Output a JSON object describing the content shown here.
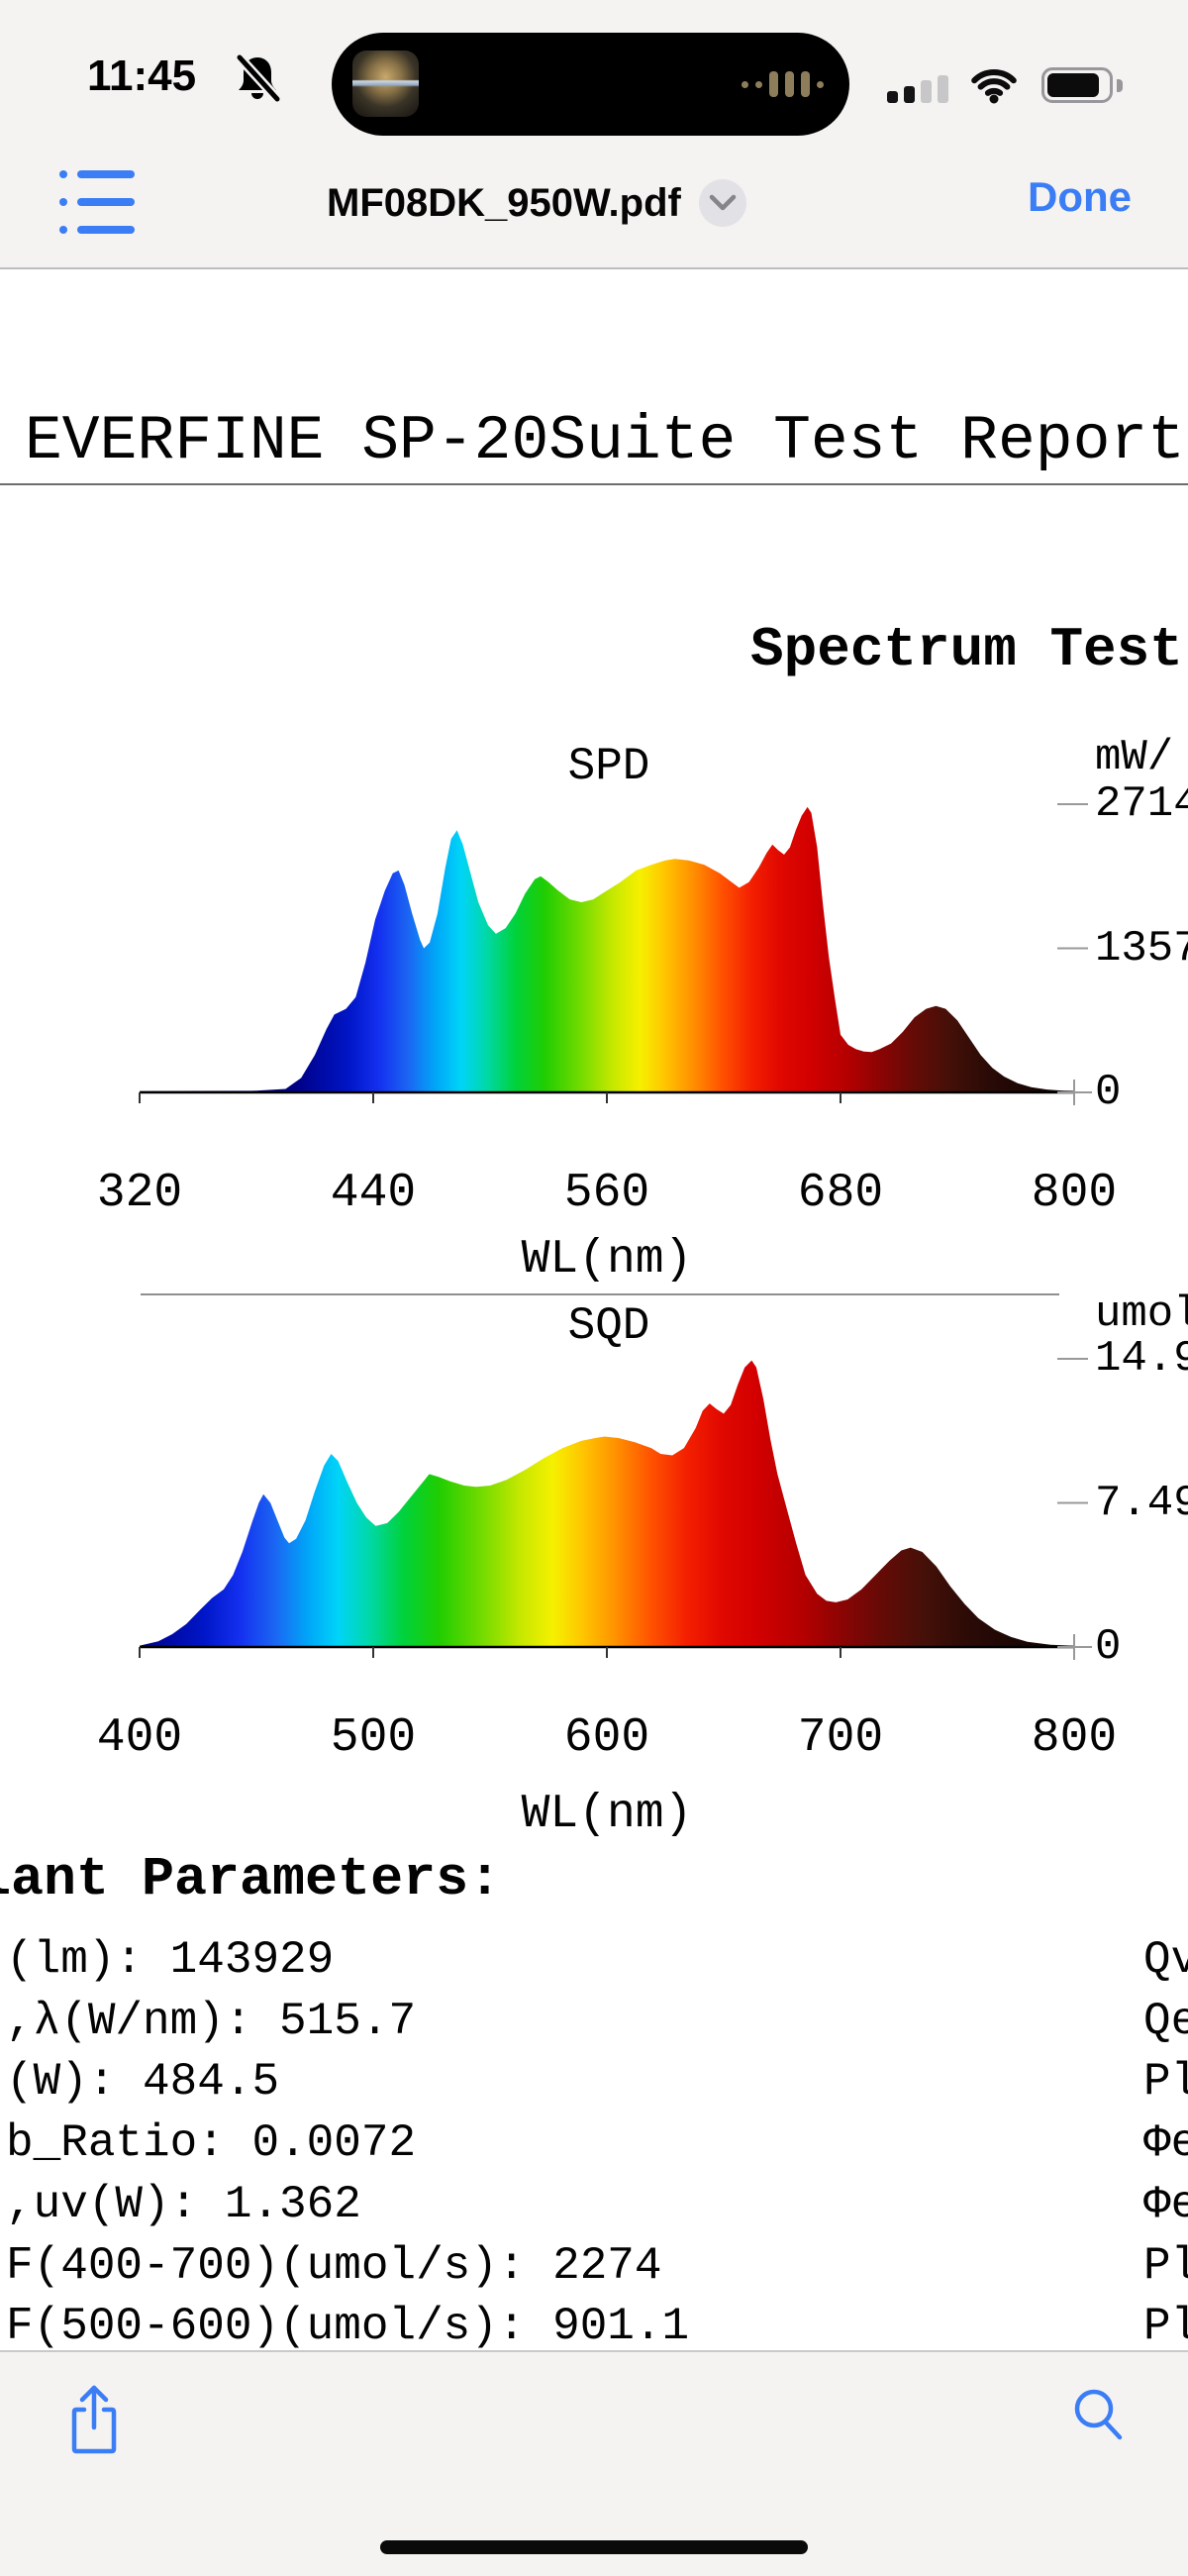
{
  "status_bar": {
    "time": "11:45",
    "muted_icon": "bell-slash",
    "signal_bars_filled": 2,
    "signal_bars_total": 4,
    "wifi": "on",
    "battery_fill_percent": 80,
    "dynamic_island": {
      "left_icon": "now-playing-artwork",
      "right_icon": "audio-waveform"
    }
  },
  "toolbar": {
    "toc_icon": "list-bullets",
    "title": "MF08DK_950W.pdf",
    "title_badge_icon": "chevron-down",
    "done_label": "Done"
  },
  "document": {
    "report_title": "EVERFINE SP-20Suite Test Report",
    "section_heading": "Spectrum Test",
    "parameters_heading": "lant Parameters:",
    "parameters": [
      {
        "left": "(lm): 143929",
        "right": "Qv"
      },
      {
        "left": ",λ(W/nm): 515.7",
        "right": "Qe"
      },
      {
        "left": "(W): 484.5",
        "right": "Pl"
      },
      {
        "left": "b_Ratio: 0.0072",
        "right": "Φe"
      },
      {
        "left": ",uv(W): 1.362",
        "right": "Φe"
      },
      {
        "left": "F(400-700)(umol/s): 2274",
        "right": "Pl"
      },
      {
        "left": "F(500-600)(umol/s): 901.1",
        "right": "Pl"
      }
    ]
  },
  "bottom_toolbar": {
    "share_icon": "share",
    "search_icon": "magnifier"
  },
  "colors": {
    "accent": "#3b7df5",
    "bar_background": "#f4f3f1",
    "hairline": "#bdbdbf",
    "axis": "#000000",
    "tick_gray": "#999999"
  },
  "wavelength_colors": [
    [
      320,
      "#000038"
    ],
    [
      400,
      "#000085"
    ],
    [
      428,
      "#0016c8"
    ],
    [
      443,
      "#1430f0"
    ],
    [
      458,
      "#1b66f2"
    ],
    [
      472,
      "#00a6f8"
    ],
    [
      485,
      "#00d4f8"
    ],
    [
      498,
      "#00d8aa"
    ],
    [
      513,
      "#00d23c"
    ],
    [
      528,
      "#20cd02"
    ],
    [
      548,
      "#7adc00"
    ],
    [
      563,
      "#c6e800"
    ],
    [
      577,
      "#f6f000"
    ],
    [
      590,
      "#ffc400"
    ],
    [
      604,
      "#ff9000"
    ],
    [
      619,
      "#ff5200"
    ],
    [
      634,
      "#f42000"
    ],
    [
      649,
      "#e00800"
    ],
    [
      664,
      "#d20000"
    ],
    [
      684,
      "#b40000"
    ],
    [
      700,
      "#8c0404"
    ],
    [
      716,
      "#680a06"
    ],
    [
      736,
      "#441008"
    ],
    [
      756,
      "#2a0a06"
    ],
    [
      780,
      "#180604"
    ],
    [
      800,
      "#0e0402"
    ]
  ],
  "chart_data": [
    {
      "type": "area",
      "title": "SPD",
      "ylabel": "mW/",
      "xlabel": "WL(nm)",
      "xlim": [
        320,
        800
      ],
      "ylim": [
        0,
        2714
      ],
      "x_ticks": [
        "320",
        "440",
        "560",
        "680",
        "800"
      ],
      "y_ticks": [
        "2714",
        "1357",
        "0"
      ],
      "grid": false,
      "legend": false,
      "points": [
        [
          320,
          11
        ],
        [
          350,
          14
        ],
        [
          380,
          16
        ],
        [
          395,
          33
        ],
        [
          403,
          136
        ],
        [
          410,
          353
        ],
        [
          416,
          597
        ],
        [
          420,
          733
        ],
        [
          426,
          787
        ],
        [
          431,
          896
        ],
        [
          436,
          1221
        ],
        [
          441,
          1628
        ],
        [
          446,
          1900
        ],
        [
          450,
          2063
        ],
        [
          453,
          2090
        ],
        [
          456,
          1954
        ],
        [
          460,
          1683
        ],
        [
          464,
          1438
        ],
        [
          466,
          1357
        ],
        [
          469,
          1411
        ],
        [
          473,
          1683
        ],
        [
          477,
          2117
        ],
        [
          480,
          2388
        ],
        [
          483,
          2470
        ],
        [
          486,
          2334
        ],
        [
          490,
          2063
        ],
        [
          494,
          1791
        ],
        [
          499,
          1574
        ],
        [
          503,
          1493
        ],
        [
          508,
          1547
        ],
        [
          513,
          1683
        ],
        [
          518,
          1873
        ],
        [
          523,
          2008
        ],
        [
          526,
          2036
        ],
        [
          530,
          1981
        ],
        [
          535,
          1900
        ],
        [
          541,
          1818
        ],
        [
          547,
          1791
        ],
        [
          553,
          1818
        ],
        [
          560,
          1900
        ],
        [
          567,
          1981
        ],
        [
          575,
          2090
        ],
        [
          583,
          2144
        ],
        [
          590,
          2185
        ],
        [
          595,
          2198
        ],
        [
          602,
          2185
        ],
        [
          610,
          2144
        ],
        [
          618,
          2063
        ],
        [
          624,
          1981
        ],
        [
          628,
          1927
        ],
        [
          633,
          1981
        ],
        [
          638,
          2117
        ],
        [
          642,
          2253
        ],
        [
          645,
          2334
        ],
        [
          648,
          2280
        ],
        [
          651,
          2239
        ],
        [
          654,
          2307
        ],
        [
          657,
          2470
        ],
        [
          660,
          2605
        ],
        [
          663,
          2687
        ],
        [
          665,
          2633
        ],
        [
          668,
          2307
        ],
        [
          671,
          1764
        ],
        [
          674,
          1276
        ],
        [
          677,
          896
        ],
        [
          680,
          543
        ],
        [
          684,
          448
        ],
        [
          688,
          407
        ],
        [
          692,
          385
        ],
        [
          696,
          380
        ],
        [
          700,
          407
        ],
        [
          706,
          461
        ],
        [
          712,
          570
        ],
        [
          718,
          706
        ],
        [
          724,
          787
        ],
        [
          729,
          814
        ],
        [
          734,
          787
        ],
        [
          740,
          679
        ],
        [
          746,
          516
        ],
        [
          752,
          353
        ],
        [
          758,
          231
        ],
        [
          764,
          149
        ],
        [
          771,
          87
        ],
        [
          778,
          49
        ],
        [
          786,
          27
        ],
        [
          794,
          16
        ],
        [
          800,
          14
        ]
      ]
    },
    {
      "type": "area",
      "title": "SQD",
      "ylabel": "umol/",
      "xlabel": "WL(nm)",
      "xlim": [
        400,
        800
      ],
      "ylim": [
        0,
        14.98
      ],
      "x_ticks": [
        "400",
        "500",
        "600",
        "700",
        "800"
      ],
      "y_ticks": [
        "14.9",
        "7.49",
        "0"
      ],
      "grid": false,
      "legend": false,
      "points": [
        [
          400,
          0.07
        ],
        [
          408,
          0.3
        ],
        [
          414,
          0.67
        ],
        [
          420,
          1.2
        ],
        [
          426,
          1.95
        ],
        [
          431,
          2.55
        ],
        [
          436,
          3.0
        ],
        [
          440,
          3.75
        ],
        [
          444,
          4.94
        ],
        [
          448,
          6.44
        ],
        [
          451,
          7.49
        ],
        [
          453,
          7.94
        ],
        [
          456,
          7.49
        ],
        [
          459,
          6.59
        ],
        [
          462,
          5.69
        ],
        [
          464,
          5.39
        ],
        [
          467,
          5.62
        ],
        [
          471,
          6.59
        ],
        [
          475,
          8.09
        ],
        [
          479,
          9.44
        ],
        [
          482,
          10.04
        ],
        [
          485,
          9.66
        ],
        [
          489,
          8.54
        ],
        [
          493,
          7.49
        ],
        [
          497,
          6.74
        ],
        [
          501,
          6.29
        ],
        [
          506,
          6.44
        ],
        [
          511,
          7.04
        ],
        [
          517,
          7.94
        ],
        [
          522,
          8.69
        ],
        [
          524,
          8.99
        ],
        [
          528,
          8.84
        ],
        [
          533,
          8.61
        ],
        [
          539,
          8.39
        ],
        [
          544,
          8.33
        ],
        [
          550,
          8.39
        ],
        [
          557,
          8.69
        ],
        [
          565,
          9.21
        ],
        [
          573,
          9.81
        ],
        [
          581,
          10.34
        ],
        [
          589,
          10.71
        ],
        [
          595,
          10.86
        ],
        [
          599,
          10.94
        ],
        [
          605,
          10.86
        ],
        [
          612,
          10.64
        ],
        [
          619,
          10.34
        ],
        [
          623,
          10.04
        ],
        [
          628,
          9.96
        ],
        [
          633,
          10.34
        ],
        [
          638,
          11.38
        ],
        [
          641,
          12.28
        ],
        [
          644,
          12.66
        ],
        [
          647,
          12.36
        ],
        [
          650,
          12.13
        ],
        [
          653,
          12.58
        ],
        [
          656,
          13.63
        ],
        [
          659,
          14.53
        ],
        [
          662,
          14.9
        ],
        [
          664,
          14.53
        ],
        [
          667,
          12.88
        ],
        [
          670,
          10.79
        ],
        [
          673,
          8.99
        ],
        [
          677,
          7.19
        ],
        [
          681,
          5.39
        ],
        [
          685,
          3.75
        ],
        [
          690,
          2.77
        ],
        [
          694,
          2.4
        ],
        [
          698,
          2.32
        ],
        [
          703,
          2.47
        ],
        [
          709,
          3.0
        ],
        [
          715,
          3.75
        ],
        [
          721,
          4.49
        ],
        [
          726,
          5.02
        ],
        [
          730,
          5.17
        ],
        [
          735,
          4.94
        ],
        [
          741,
          4.19
        ],
        [
          747,
          3.15
        ],
        [
          753,
          2.25
        ],
        [
          759,
          1.5
        ],
        [
          766,
          0.9
        ],
        [
          773,
          0.52
        ],
        [
          780,
          0.27
        ],
        [
          790,
          0.12
        ],
        [
          800,
          0.06
        ]
      ]
    }
  ]
}
